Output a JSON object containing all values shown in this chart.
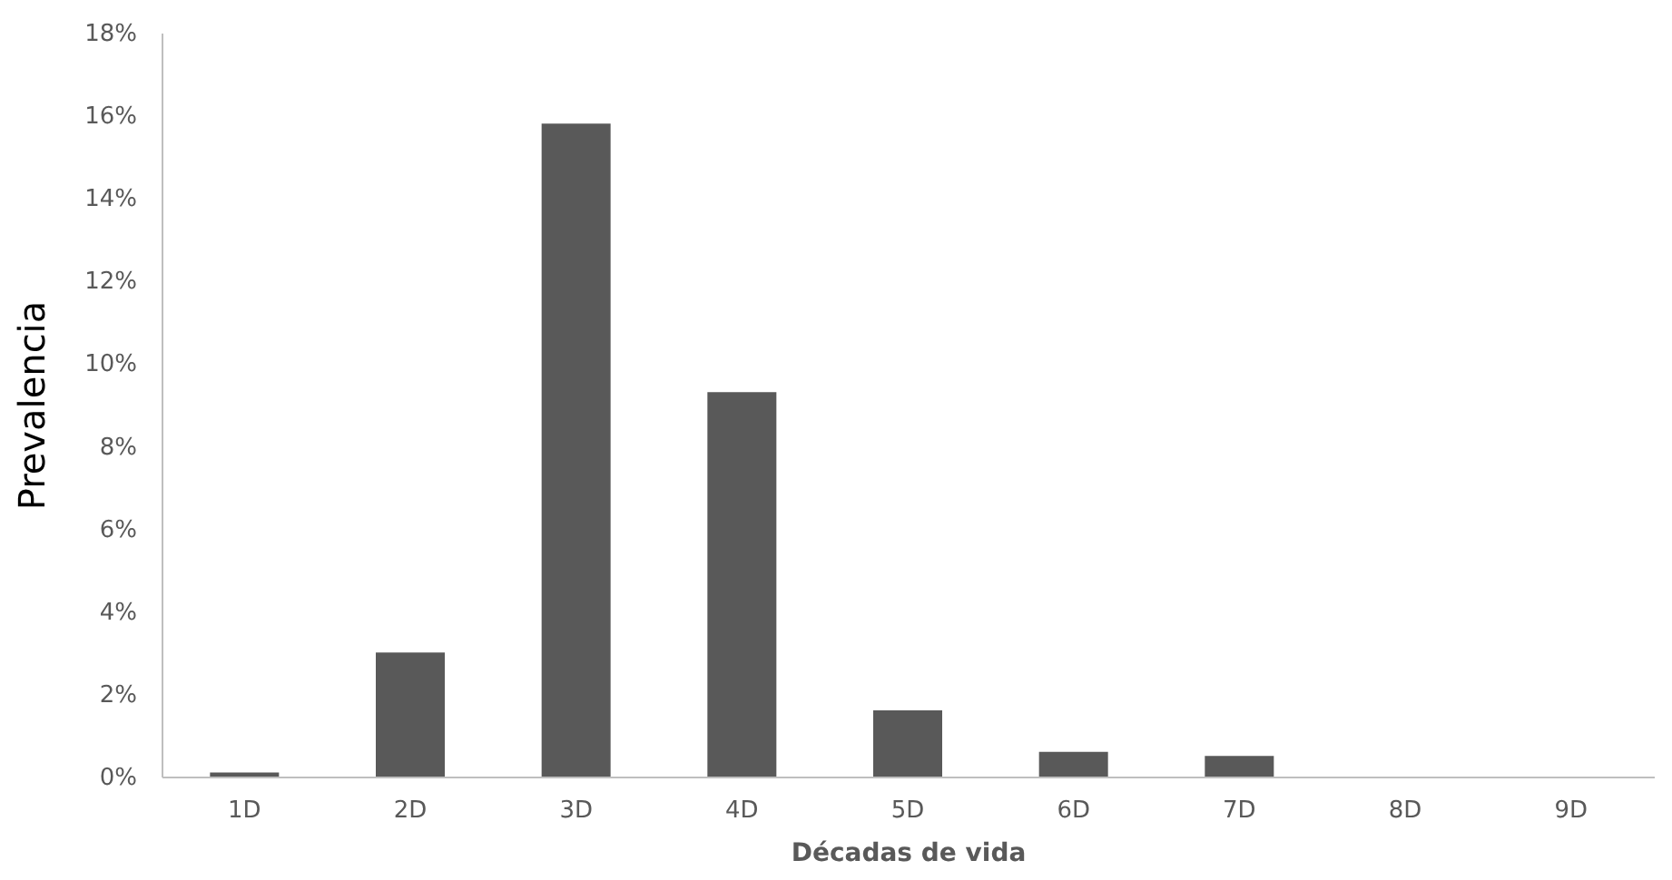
{
  "chart_data": {
    "type": "bar",
    "xlabel": "Décadas de vida",
    "ylabel": "Prevalencia",
    "categories": [
      "1D",
      "2D",
      "3D",
      "4D",
      "5D",
      "6D",
      "7D",
      "8D",
      "9D"
    ],
    "values": [
      0.1,
      3.0,
      15.8,
      9.3,
      1.6,
      0.6,
      0.5,
      0,
      0
    ],
    "color": "#595959",
    "ylim": [
      0,
      18
    ],
    "yticks": [
      {
        "value": 0,
        "label": "0%"
      },
      {
        "value": 2,
        "label": "2%"
      },
      {
        "value": 4,
        "label": "4%"
      },
      {
        "value": 6,
        "label": "6%"
      },
      {
        "value": 8,
        "label": "8%"
      },
      {
        "value": 10,
        "label": "10%"
      },
      {
        "value": 12,
        "label": "12%"
      },
      {
        "value": 14,
        "label": "14%"
      },
      {
        "value": 16,
        "label": "16%"
      },
      {
        "value": 18,
        "label": "18%"
      }
    ],
    "grid": false
  }
}
